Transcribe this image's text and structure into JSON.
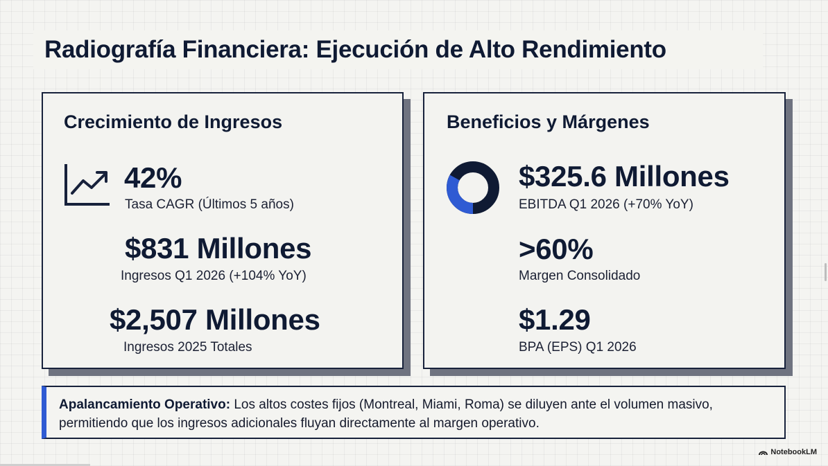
{
  "title": "Radiografía Financiera: Ejecución de Alto Rendimiento",
  "left_card": {
    "heading": "Crecimiento de Ingresos",
    "icon": "trend-up-chart-icon",
    "metrics": [
      {
        "value": "42%",
        "label": "Tasa CAGR (Últimos 5 años)"
      },
      {
        "value": "$831 Millones",
        "label": "Ingresos Q1 2026 (+104% YoY)"
      },
      {
        "value": "$2,507 Millones",
        "label": "Ingresos 2025 Totales"
      }
    ]
  },
  "right_card": {
    "heading": "Beneficios y Márgenes",
    "icon": "donut-chart-icon",
    "donut_fraction": 0.33,
    "metrics": [
      {
        "value": "$325.6 Millones",
        "label": "EBITDA Q1 2026 (+70% YoY)"
      },
      {
        "value": ">60%",
        "label": "Margen Consolidado"
      },
      {
        "value": "$1.29",
        "label": "BPA (EPS) Q1 2026"
      }
    ]
  },
  "callout": {
    "bold": "Apalancamiento Operativo:",
    "text": " Los altos costes fijos (Montreal, Miami, Roma) se diluyen ante el volumen masivo, permitiendo que los ingresos adicionales fluyan directamente al margen operativo."
  },
  "watermark": "NotebookLM",
  "colors": {
    "navy": "#0f1a33",
    "accent_blue": "#2f5bd3",
    "shadow": "#6f7380"
  }
}
